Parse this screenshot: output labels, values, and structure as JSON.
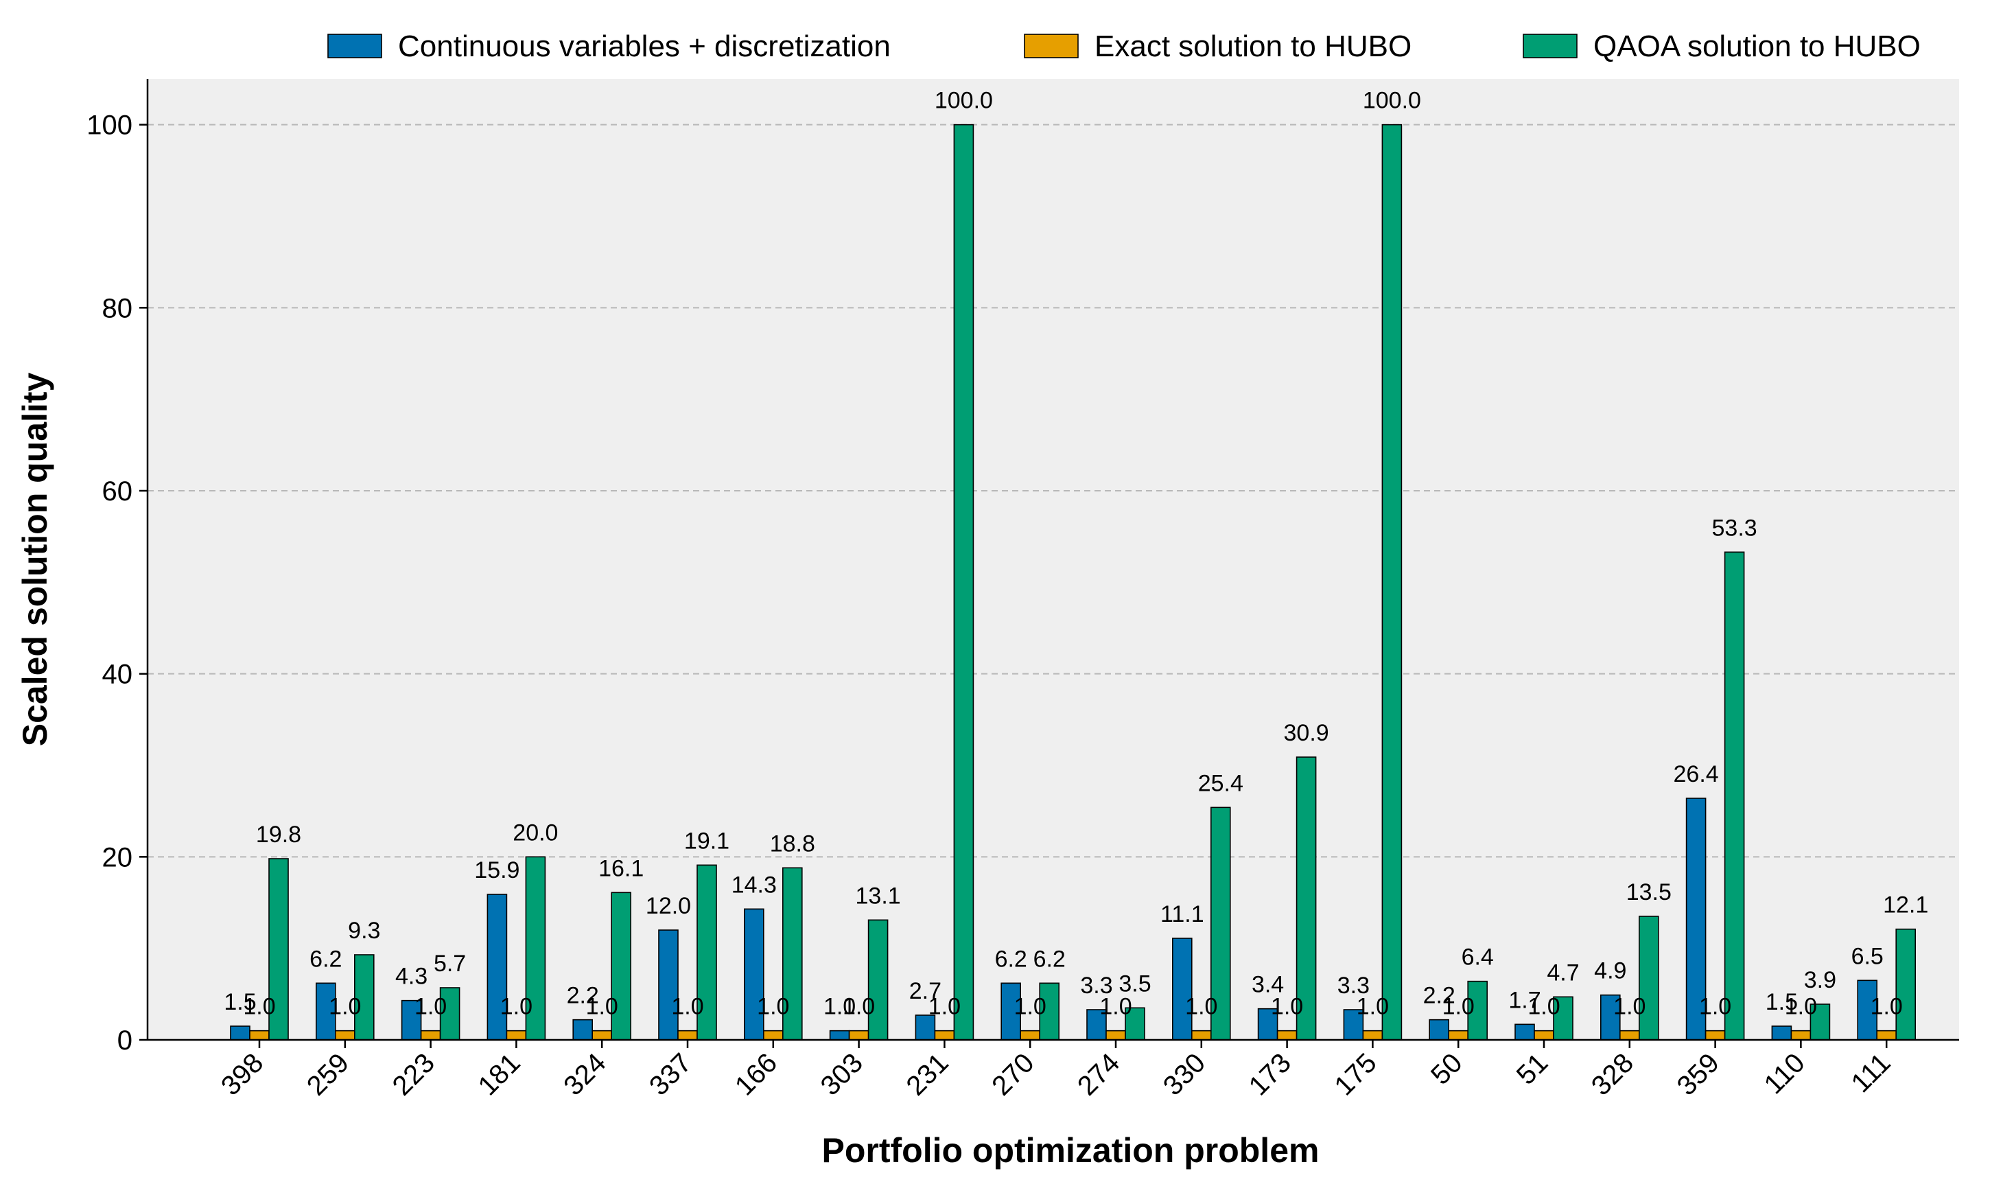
{
  "chart_data": {
    "type": "bar",
    "title": "",
    "xlabel": "Portfolio optimization problem",
    "ylabel": "Scaled solution quality",
    "ylim": [
      0,
      105
    ],
    "yticks": [
      0,
      20,
      40,
      60,
      80,
      100
    ],
    "grid": "y-dashed",
    "legend_position": "top",
    "categories": [
      "398",
      "259",
      "223",
      "181",
      "324",
      "337",
      "166",
      "303",
      "231",
      "270",
      "274",
      "330",
      "173",
      "175",
      "50",
      "51",
      "328",
      "359",
      "110",
      "111"
    ],
    "series": [
      {
        "name": "Continuous variables + discretization",
        "color": "#0072b2",
        "values": [
          1.5,
          6.2,
          4.3,
          15.9,
          2.2,
          12.0,
          14.3,
          1.0,
          2.7,
          6.2,
          3.3,
          11.1,
          3.4,
          3.3,
          2.2,
          1.7,
          4.9,
          26.4,
          1.5,
          6.5
        ],
        "labels": [
          "1.5",
          "6.2",
          "4.3",
          "15.9",
          "2.2",
          "12.0",
          "14.3",
          "1.0",
          "2.7",
          "6.2",
          "3.3",
          "11.1",
          "3.4",
          "3.3",
          "2.2",
          "1.7",
          "4.9",
          "26.4",
          "1.5",
          "6.5"
        ]
      },
      {
        "name": "Exact solution to HUBO",
        "color": "#e69f00",
        "values": [
          1.0,
          1.0,
          1.0,
          1.0,
          1.0,
          1.0,
          1.0,
          1.0,
          1.0,
          1.0,
          1.0,
          1.0,
          1.0,
          1.0,
          1.0,
          1.0,
          1.0,
          1.0,
          1.0,
          1.0
        ],
        "labels": [
          "1.0",
          "1.0",
          "1.0",
          "1.0",
          "1.0",
          "1.0",
          "1.0",
          "1.0",
          "1.0",
          "1.0",
          "1.0",
          "1.0",
          "1.0",
          "1.0",
          "1.0",
          "1.0",
          "1.0",
          "1.0",
          "1.0",
          "1.0"
        ]
      },
      {
        "name": "QAOA solution to HUBO",
        "color": "#009e73",
        "values": [
          19.8,
          9.3,
          5.7,
          20.0,
          16.1,
          19.1,
          18.8,
          13.1,
          100.0,
          6.2,
          3.5,
          25.4,
          30.9,
          100.0,
          6.4,
          4.7,
          13.5,
          53.3,
          3.9,
          12.1
        ],
        "labels": [
          "19.8",
          "9.3",
          "5.7",
          "20.0",
          "16.1",
          "19.1",
          "18.8",
          "13.1",
          "100.0",
          "6.2",
          "3.5",
          "25.4",
          "30.9",
          "100.0",
          "6.4",
          "4.7",
          "13.5",
          "53.3",
          "3.9",
          "12.1"
        ]
      }
    ]
  }
}
